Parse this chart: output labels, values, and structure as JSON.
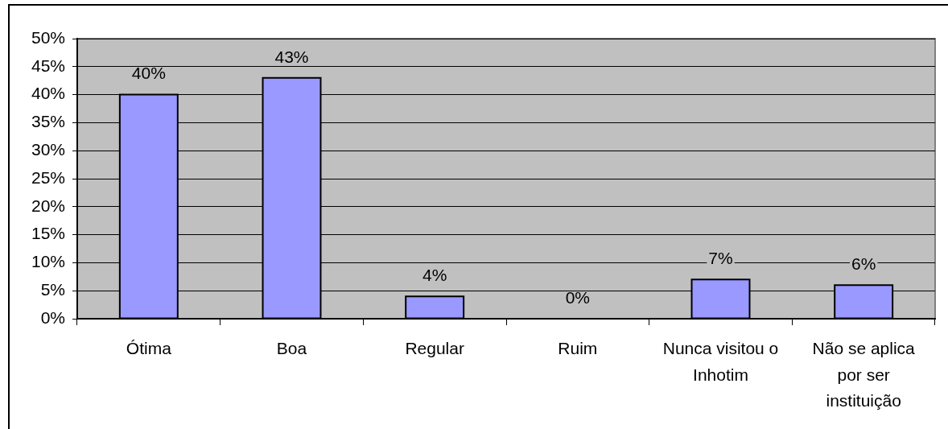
{
  "chart_data": {
    "type": "bar",
    "categories": [
      "Ótima",
      "Boa",
      "Regular",
      "Ruim",
      "Nunca visitou o Inhotim",
      "Não se aplica por ser instituição"
    ],
    "values": [
      40,
      43,
      4,
      0,
      7,
      6
    ],
    "color": "#9999ff",
    "value_labels": [
      "40%",
      "43%",
      "4%",
      "0%",
      "7%",
      "6%"
    ],
    "ylim": [
      0,
      50
    ],
    "yticks": [
      {
        "value": 0,
        "label": "0%"
      },
      {
        "value": 5,
        "label": "5%"
      },
      {
        "value": 10,
        "label": "10%"
      },
      {
        "value": 15,
        "label": "15%"
      },
      {
        "value": 20,
        "label": "20%"
      },
      {
        "value": 25,
        "label": "25%"
      },
      {
        "value": 30,
        "label": "30%"
      },
      {
        "value": 35,
        "label": "35%"
      },
      {
        "value": 40,
        "label": "40%"
      },
      {
        "value": 45,
        "label": "45%"
      },
      {
        "value": 50,
        "label": "50%"
      }
    ],
    "grid": "y"
  }
}
